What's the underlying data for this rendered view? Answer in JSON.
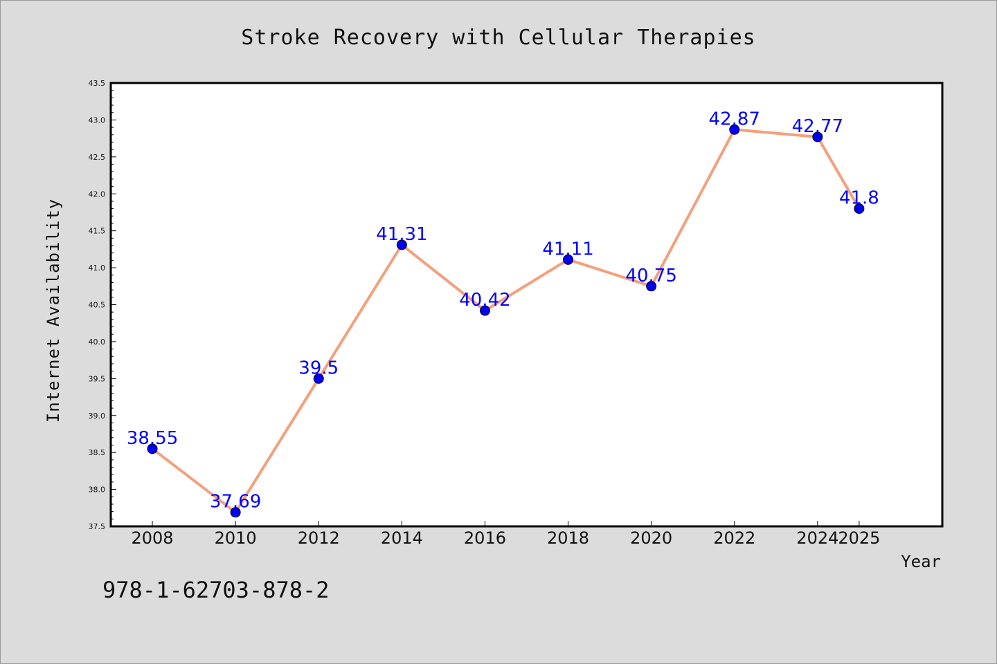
{
  "chart_data": {
    "type": "line",
    "title": "Stroke Recovery with Cellular Therapies",
    "xlabel": "Year",
    "ylabel": "Internet Availability",
    "x": [
      "2008",
      "2010",
      "2012",
      "2014",
      "2016",
      "2018",
      "2020",
      "2022",
      "2024",
      "2025"
    ],
    "x_tick_labels": [
      "2008",
      "2010",
      "2012",
      "2014",
      "2016",
      "2018",
      "2020",
      "2022",
      "2024",
      "2025"
    ],
    "series": [
      {
        "values": [
          38.55,
          37.69,
          39.5,
          41.31,
          40.42,
          41.11,
          40.75,
          42.87,
          42.77,
          41.8
        ]
      }
    ],
    "data_labels": [
      "38.55",
      "37.69",
      "39.5",
      "41.31",
      "40.42",
      "41.11",
      "40.75",
      "42.87",
      "42.77",
      "41.8"
    ],
    "ylim": [
      37.5,
      43.5
    ],
    "y_tick_labels": [
      "37.5",
      "38.0",
      "38.5",
      "39.0",
      "39.5",
      "40.0",
      "40.5",
      "41.0",
      "41.5",
      "42.0",
      "42.5",
      "43.0",
      "43.5"
    ],
    "grid": false,
    "legend": "none",
    "colors": {
      "line": "#f4a07c",
      "marker": "#0000ee",
      "label": "#0000ff",
      "background": "#dcdcdc",
      "plot_area": "#ffffff"
    }
  },
  "footer": {
    "isbn": "978-1-62703-878-2"
  }
}
